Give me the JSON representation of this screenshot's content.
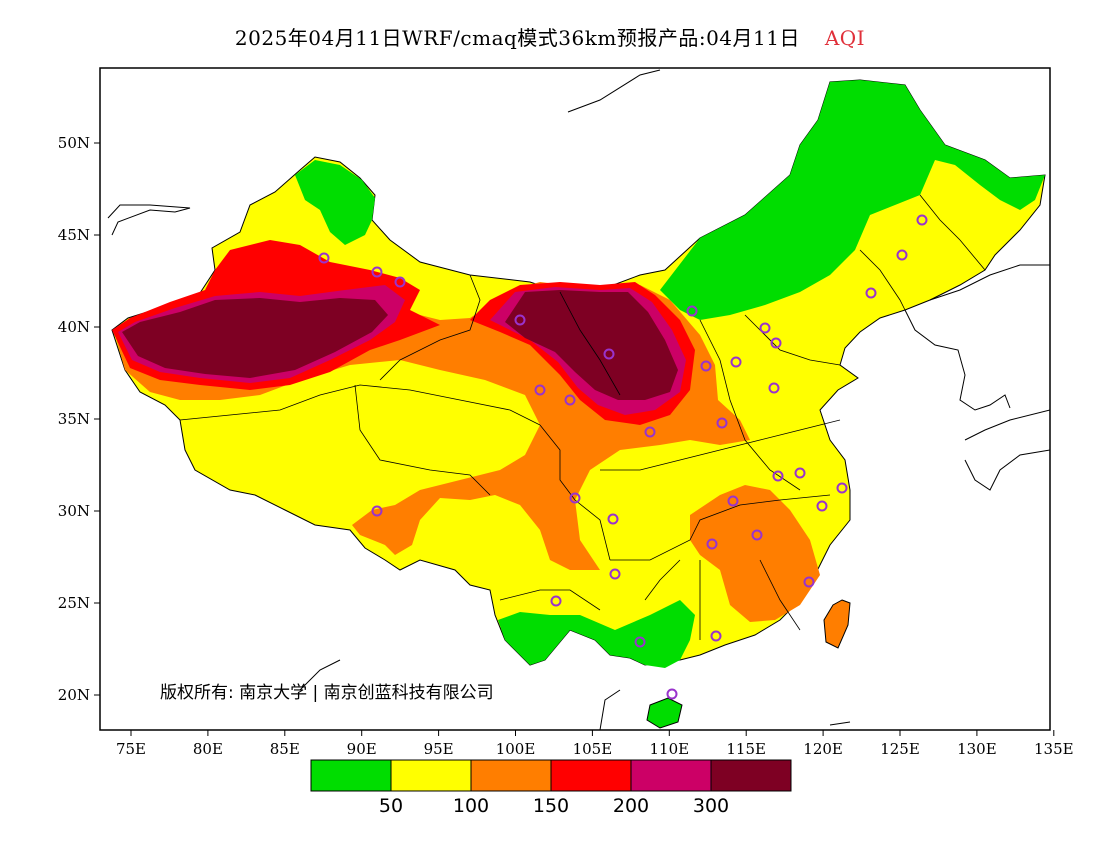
{
  "header": {
    "title_main": "2025年04月11日WRF/cmaq模式36km预报产品:04月11日",
    "title_variable": "AQI"
  },
  "axes": {
    "lon_labels": [
      "75E",
      "80E",
      "85E",
      "90E",
      "95E",
      "100E",
      "105E",
      "110E",
      "115E",
      "120E",
      "125E",
      "130E",
      "135E"
    ],
    "lat_labels": [
      "50N",
      "45N",
      "40N",
      "35N",
      "30N",
      "25N",
      "20N"
    ]
  },
  "copyright": "版权所有: 南京大学 | 南京创蓝科技有限公司",
  "legend": {
    "bins": [
      {
        "color": "#00dd00"
      },
      {
        "color": "#ffff00"
      },
      {
        "color": "#ff7e00"
      },
      {
        "color": "#ff0000"
      },
      {
        "color": "#cc0066"
      },
      {
        "color": "#7e0023"
      }
    ],
    "thresholds": [
      "50",
      "100",
      "150",
      "200",
      "300"
    ]
  },
  "colors": {
    "good": "#00dd00",
    "moderate": "#ffff00",
    "usg": "#ff7e00",
    "unhealthy": "#ff0000",
    "very_unhealthy": "#cc0066",
    "hazardous": "#7e0023",
    "station_marker": "#9933cc"
  },
  "stations_count_shown": 34
}
